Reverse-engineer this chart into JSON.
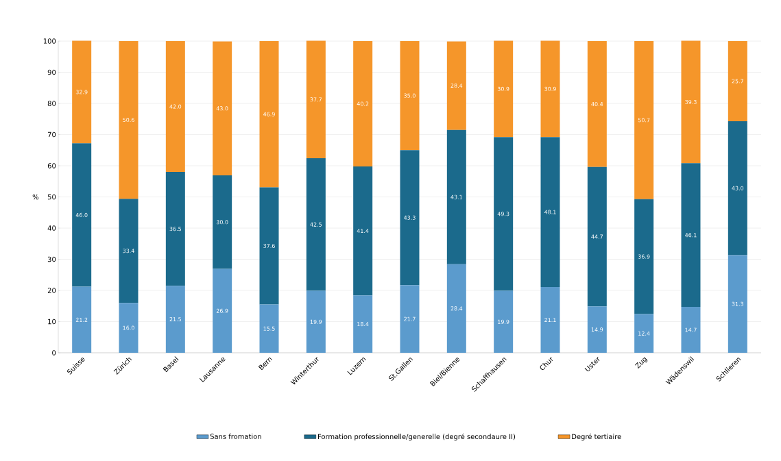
{
  "chart_data": {
    "type": "bar",
    "stacked": true,
    "ylabel": "%",
    "categories": [
      "Suisse",
      "Zürich",
      "Basel",
      "Lausanne",
      "Bern",
      "Winterthur",
      "Luzern",
      "St.Gallen",
      "Biel/Bienne",
      "Schaffhausen",
      "Chur",
      "Uster",
      "Zug",
      "Wädenswil",
      "Schlieren"
    ],
    "series": [
      {
        "name": "Sans fromation",
        "color": "#5b9bcd",
        "values": [
          21.2,
          16.0,
          21.5,
          26.9,
          15.5,
          19.9,
          18.4,
          21.7,
          28.4,
          19.9,
          21.1,
          14.9,
          12.4,
          14.7,
          31.3
        ],
        "value_labels": [
          "21.2",
          "16.0",
          "21.5",
          "26.9",
          "15.5",
          "19.9",
          "18.4",
          "21.7",
          "28.4",
          "19.9",
          "21.1",
          "14.9",
          "12.4",
          "14.7",
          "31.3"
        ]
      },
      {
        "name": "Formation professionnelle/generelle (degré secondaure II)",
        "color": "#1b6a8c",
        "values": [
          46.0,
          33.4,
          36.5,
          30.0,
          37.6,
          42.5,
          41.4,
          43.3,
          43.1,
          49.3,
          48.1,
          44.7,
          36.9,
          46.1,
          43.0
        ],
        "value_labels": [
          "46.0",
          "33.4",
          "36.5",
          "30.0",
          "37.6",
          "42.5",
          "41.4",
          "43.3",
          "43.1",
          "49.3",
          "48.1",
          "44.7",
          "36.9",
          "46.1",
          "43.0"
        ]
      },
      {
        "name": "Degré tertiaire",
        "color": "#f5962a",
        "values": [
          32.9,
          50.6,
          42.0,
          43.0,
          46.9,
          37.7,
          40.2,
          35.0,
          28.4,
          30.9,
          30.9,
          40.4,
          50.7,
          39.3,
          25.7
        ],
        "value_labels": [
          "32.9",
          "50.6",
          "42.0",
          "43.0",
          "46.9",
          "37.7",
          "40.2",
          "35.0",
          "28.4",
          "30.9",
          "30.9",
          "40.4",
          "50.7",
          "39.3",
          "25.7"
        ]
      }
    ],
    "ylim": [
      0,
      100
    ],
    "yticks": [
      0,
      10,
      20,
      30,
      40,
      50,
      60,
      70,
      80,
      90,
      100
    ],
    "grid": "y",
    "legend": "bottom"
  }
}
